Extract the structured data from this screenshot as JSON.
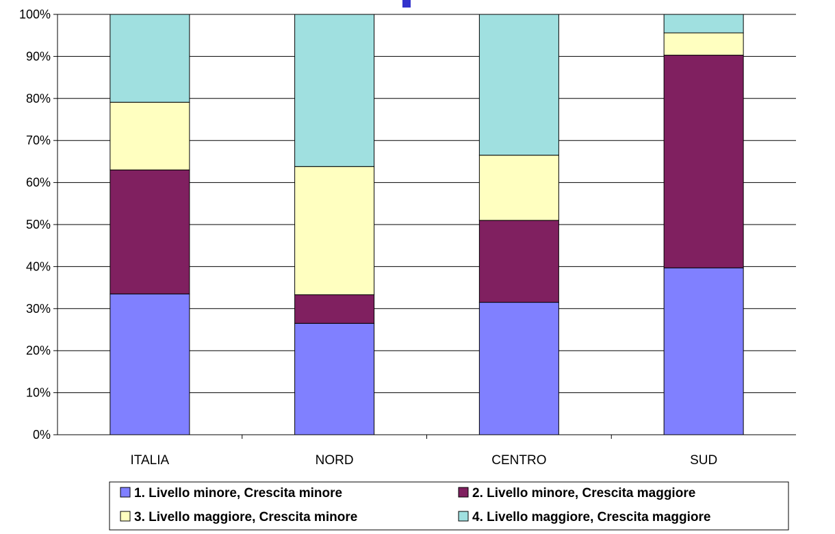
{
  "chart_data": {
    "type": "bar",
    "stacked": true,
    "percent_stacked": true,
    "categories": [
      "ITALIA",
      "NORD",
      "CENTRO",
      "SUD"
    ],
    "series": [
      {
        "name": "1. Livello minore, Crescita minore",
        "color": "#8080ff",
        "values": [
          33.5,
          26.5,
          31.5,
          39.7
        ]
      },
      {
        "name": "2. Livello minore, Crescita maggiore",
        "color": "#802060",
        "values": [
          29.5,
          6.8,
          19.5,
          50.6
        ]
      },
      {
        "name": "3. Livello maggiore, Crescita minore",
        "color": "#ffffc0",
        "values": [
          16.1,
          30.5,
          15.5,
          5.3
        ]
      },
      {
        "name": "4. Livello maggiore, Crescita maggiore",
        "color": "#a0e0e0",
        "values": [
          20.9,
          36.2,
          33.5,
          4.4
        ]
      }
    ],
    "ylim": [
      0,
      100
    ],
    "y_ticks": [
      "0%",
      "10%",
      "20%",
      "30%",
      "40%",
      "50%",
      "60%",
      "70%",
      "80%",
      "90%",
      "100%"
    ],
    "grid": true,
    "legend": "bottom",
    "title": "",
    "xlabel": "",
    "ylabel": ""
  },
  "accent_color": "#3333cc"
}
